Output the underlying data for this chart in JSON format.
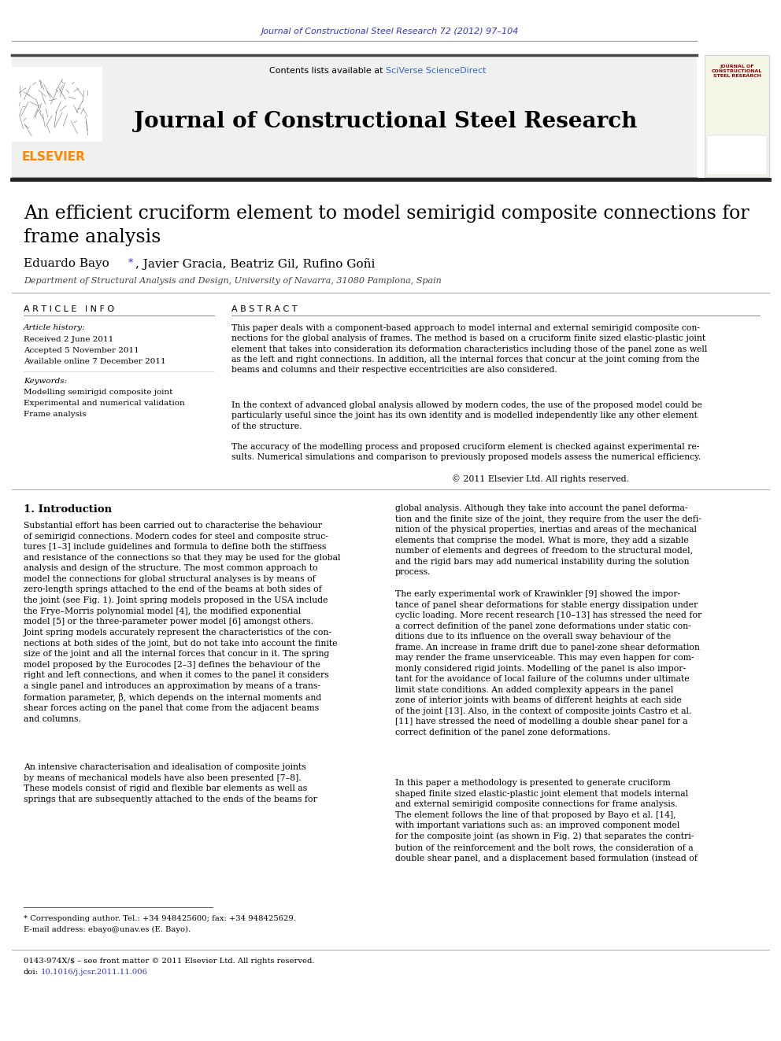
{
  "journal_header_text": "Journal of Constructional Steel Research 72 (2012) 97–104",
  "journal_header_color": "#3333cc",
  "contents_text": "Contents lists available at ",
  "sciverse_text": "SciVerse ScienceDirect",
  "sciverse_color": "#3366cc",
  "journal_title_header": "Journal of Constructional Steel Research",
  "elsevier_color": "#ff8800",
  "paper_title": "An efficient cruciform element to model semirigid composite connections for\nframe analysis",
  "authors": "Eduardo Bayo *, Javier Gracia, Beatriz Gil, Rufino Goñi",
  "affiliation": "Department of Structural Analysis and Design, University of Navarra, 31080 Pamplona, Spain",
  "article_info_title": "A R T I C L E   I N F O",
  "abstract_title": "A B S T R A C T",
  "article_history_label": "Article history:",
  "received_text": "Received 2 June 2011",
  "accepted_text": "Accepted 5 November 2011",
  "available_text": "Available online 7 December 2011",
  "keywords_label": "Keywords:",
  "keyword1": "Modelling semirigid composite joint",
  "keyword2": "Experimental and numerical validation",
  "keyword3": "Frame analysis",
  "abstract_paragraph1": "This paper deals with a component-based approach to model internal and external semirigid composite con-\nnections for the global analysis of frames. The method is based on a cruciform finite sized elastic-plastic joint\nelement that takes into consideration its deformation characteristics including those of the panel zone as well\nas the left and right connections. In addition, all the internal forces that concur at the joint coming from the\nbeams and columns and their respective eccentricities are also considered.",
  "abstract_paragraph2": "In the context of advanced global analysis allowed by modern codes, the use of the proposed model could be\nparticularly useful since the joint has its own identity and is modelled independently like any other element\nof the structure.",
  "abstract_paragraph3": "The accuracy of the modelling process and proposed cruciform element is checked against experimental re-\nsults. Numerical simulations and comparison to previously proposed models assess the numerical efficiency.",
  "abstract_copyright": "© 2011 Elsevier Ltd. All rights reserved.",
  "section1_title": "1. Introduction",
  "intro_para1": "Substantial effort has been carried out to characterise the behaviour\nof semirigid connections. Modern codes for steel and composite struc-\ntures [1–3] include guidelines and formula to define both the stiffness\nand resistance of the connections so that they may be used for the global\nanalysis and design of the structure. The most common approach to\nmodel the connections for global structural analyses is by means of\nzero-length springs attached to the end of the beams at both sides of\nthe joint (see Fig. 1). Joint spring models proposed in the USA include\nthe Frye–Morris polynomial model [4], the modified exponential\nmodel [5] or the three-parameter power model [6] amongst others.\nJoint spring models accurately represent the characteristics of the con-\nnections at both sides of the joint, but do not take into account the finite\nsize of the joint and all the internal forces that concur in it. The spring\nmodel proposed by the Eurocodes [2–3] defines the behaviour of the\nright and left connections, and when it comes to the panel it considers\na single panel and introduces an approximation by means of a trans-\nformation parameter, β, which depends on the internal moments and\nshear forces acting on the panel that come from the adjacent beams\nand columns.",
  "intro_para2": "An intensive characterisation and idealisation of composite joints\nby means of mechanical models have also been presented [7–8].\nThese models consist of rigid and flexible bar elements as well as\nsprings that are subsequently attached to the ends of the beams for",
  "right_para1": "global analysis. Although they take into account the panel deforma-\ntion and the finite size of the joint, they require from the user the defi-\nnition of the physical properties, inertias and areas of the mechanical\nelements that comprise the model. What is more, they add a sizable\nnumber of elements and degrees of freedom to the structural model,\nand the rigid bars may add numerical instability during the solution\nprocess.",
  "right_para2": "The early experimental work of Krawinkler [9] showed the impor-\ntance of panel shear deformations for stable energy dissipation under\ncyclic loading. More recent research [10–13] has stressed the need for\na correct definition of the panel zone deformations under static con-\nditions due to its influence on the overall sway behaviour of the\nframe. An increase in frame drift due to panel-zone shear deformation\nmay render the frame unserviceable. This may even happen for com-\nmonly considered rigid joints. Modelling of the panel is also impor-\ntant for the avoidance of local failure of the columns under ultimate\nlimit state conditions. An added complexity appears in the panel\nzone of interior joints with beams of different heights at each side\nof the joint [13]. Also, in the context of composite joints Castro et al.\n[11] have stressed the need of modelling a double shear panel for a\ncorrect definition of the panel zone deformations.",
  "right_para3": "In this paper a methodology is presented to generate cruciform\nshaped finite sized elastic-plastic joint element that models internal\nand external semirigid composite connections for frame analysis.\nThe element follows the line of that proposed by Bayo et al. [14],\nwith important variations such as: an improved component model\nfor the composite joint (as shown in Fig. 2) that separates the contri-\nbution of the reinforcement and the bolt rows, the consideration of a\ndouble shear panel, and a displacement based formulation (instead of",
  "footnote_star": "* Corresponding author. Tel.: +34 948425600; fax: +34 948425629.",
  "footnote_email": "E-mail address: ebayo@unav.es (E. Bayo).",
  "bottom_text1": "0143-974X/$ – see front matter © 2011 Elsevier Ltd. All rights reserved.",
  "bottom_doi_color": "#3333cc",
  "bg_header_color": "#f0f0f0",
  "header_border_color": "#999999",
  "thick_line_color": "#333333"
}
